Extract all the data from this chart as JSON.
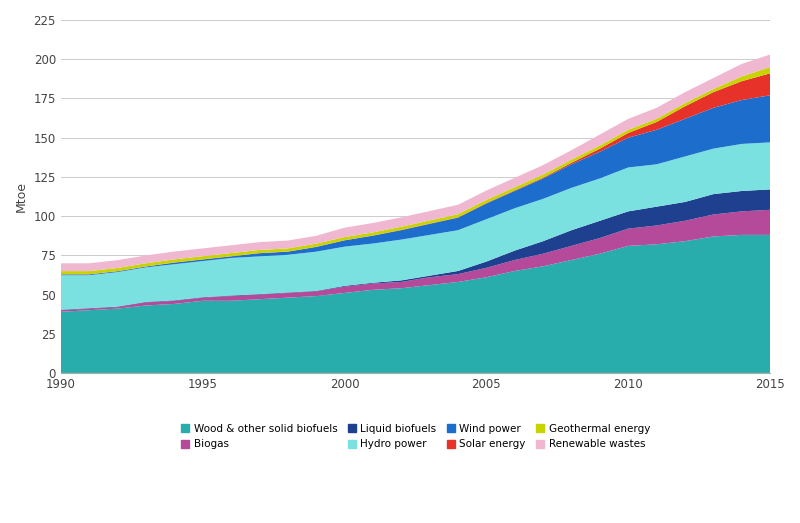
{
  "years": [
    1990,
    1991,
    1992,
    1993,
    1994,
    1995,
    1996,
    1997,
    1998,
    1999,
    2000,
    2001,
    2002,
    2003,
    2004,
    2005,
    2006,
    2007,
    2008,
    2009,
    2010,
    2011,
    2012,
    2013,
    2014,
    2015
  ],
  "series": {
    "Wood & other solid biofuels": [
      39,
      40,
      41,
      43,
      44,
      46,
      46,
      47,
      48,
      49,
      51,
      53,
      54,
      56,
      58,
      61,
      65,
      68,
      72,
      76,
      81,
      82,
      84,
      87,
      88,
      88
    ],
    "Biogas": [
      1,
      1,
      1,
      2,
      2,
      2,
      3,
      3,
      3,
      3,
      4,
      4,
      4,
      5,
      5,
      6,
      7,
      8,
      9,
      10,
      11,
      12,
      13,
      14,
      15,
      16
    ],
    "Liquid biofuels": [
      0.3,
      0.3,
      0.3,
      0.3,
      0.3,
      0.3,
      0.3,
      0.3,
      0.3,
      0.3,
      0.5,
      0.5,
      1,
      1,
      2,
      4,
      6,
      8,
      10,
      11,
      11,
      12,
      12,
      13,
      13,
      13
    ],
    "Hydro power": [
      22,
      21,
      22,
      22,
      23,
      23,
      24,
      24,
      24,
      25,
      25,
      25,
      26,
      26,
      26,
      27,
      27,
      27,
      27,
      27,
      28,
      27,
      29,
      29,
      30,
      30
    ],
    "Wind power": [
      0.5,
      0.5,
      0.5,
      0.5,
      1,
      1,
      1,
      2,
      2,
      3,
      4,
      5,
      6,
      7,
      8,
      10,
      11,
      13,
      15,
      17,
      19,
      22,
      24,
      26,
      28,
      30
    ],
    "Solar energy": [
      0.1,
      0.1,
      0.1,
      0.1,
      0.1,
      0.1,
      0.1,
      0.1,
      0.1,
      0.1,
      0.1,
      0.1,
      0.2,
      0.2,
      0.2,
      0.3,
      0.4,
      0.5,
      1,
      2,
      3,
      5,
      8,
      10,
      12,
      14
    ],
    "Geothermal energy": [
      2,
      2,
      2,
      2,
      2,
      2,
      2,
      2,
      2,
      2,
      2,
      2,
      2,
      2,
      2,
      2,
      2,
      2,
      2,
      2,
      2,
      2,
      2,
      2,
      3,
      4
    ],
    "Renewable wastes": [
      5,
      5,
      5,
      5,
      5,
      5,
      5,
      5,
      5,
      5,
      6,
      6,
      6,
      6,
      6,
      6,
      6,
      6,
      6,
      7,
      7,
      7,
      7,
      7,
      8,
      8
    ]
  },
  "colors": {
    "Wood & other solid biofuels": "#29acac",
    "Biogas": "#b5499a",
    "Liquid biofuels": "#1f3f8f",
    "Hydro power": "#7ae0e0",
    "Wind power": "#1d6dcc",
    "Solar energy": "#e63229",
    "Geothermal energy": "#c8d400",
    "Renewable wastes": "#f0b8d0"
  },
  "stack_order": [
    "Wood & other solid biofuels",
    "Biogas",
    "Liquid biofuels",
    "Hydro power",
    "Wind power",
    "Solar energy",
    "Geothermal energy",
    "Renewable wastes"
  ],
  "legend_order": [
    "Wood & other solid biofuels",
    "Biogas",
    "Liquid biofuels",
    "Hydro power",
    "Wind power",
    "Solar energy",
    "Geothermal energy",
    "Renewable wastes"
  ],
  "ylabel": "Mtoe",
  "ylim": [
    0,
    225
  ],
  "yticks": [
    0,
    25,
    50,
    75,
    100,
    125,
    150,
    175,
    200,
    225
  ],
  "xlim": [
    1990,
    2015
  ],
  "xticks": [
    1990,
    1995,
    2000,
    2005,
    2010,
    2015
  ],
  "figsize": [
    8.0,
    5.23
  ],
  "dpi": 100
}
